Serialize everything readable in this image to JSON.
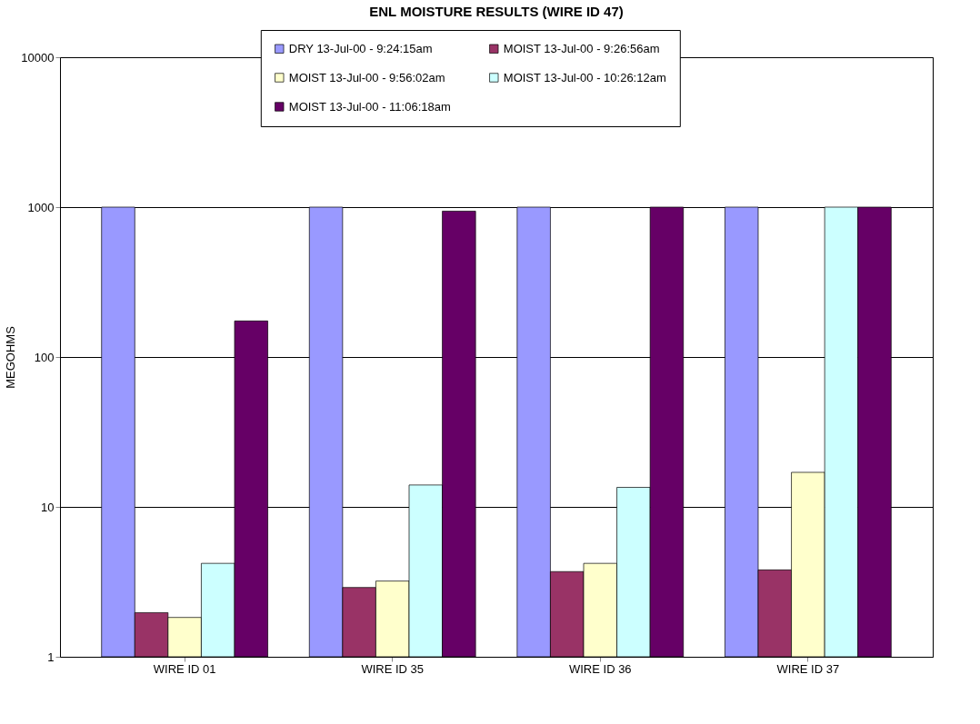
{
  "chart_data": {
    "type": "bar",
    "title": "ENL MOISTURE RESULTS (WIRE ID 47)",
    "ylabel": "MEGOHMS",
    "categories": [
      "WIRE ID 01",
      "WIRE ID 35",
      "WIRE ID 36",
      "WIRE ID 37"
    ],
    "series": [
      {
        "name": "DRY 13-Jul-00 -  9:24:15am",
        "color": "#9999ff",
        "values": [
          1000,
          1000,
          1000,
          1000
        ]
      },
      {
        "name": "MOIST 13-Jul-00 -  9:26:56am",
        "color": "#993366",
        "values": [
          1.97,
          2.9,
          3.7,
          3.8
        ]
      },
      {
        "name": "MOIST 13-Jul-00 -  9:56:02am",
        "color": "#ffffcc",
        "values": [
          1.83,
          3.2,
          4.2,
          17
        ]
      },
      {
        "name": "MOIST 13-Jul-00 - 10:26:12am",
        "color": "#ccffff",
        "values": [
          4.2,
          14,
          13.5,
          1000
        ]
      },
      {
        "name": "MOIST 13-Jul-00 - 11:06:18am",
        "color": "#660066",
        "values": [
          174,
          940,
          1000,
          1000
        ]
      }
    ],
    "log": true,
    "ylim": [
      1,
      10000
    ],
    "yticks": [
      1,
      10,
      100,
      1000,
      10000
    ],
    "grid": "y",
    "legend": "top"
  }
}
